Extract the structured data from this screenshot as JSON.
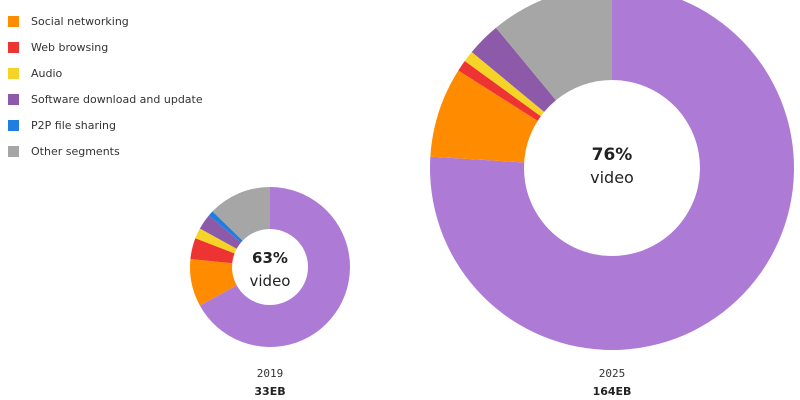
{
  "chart_data": {
    "type": "pie",
    "legend": [
      {
        "label": "Social networking",
        "color": "#ff8c00"
      },
      {
        "label": "Web browsing",
        "color": "#ee3333"
      },
      {
        "label": "Audio",
        "color": "#f5d327"
      },
      {
        "label": "Software download and update",
        "color": "#8c5aa8"
      },
      {
        "label": "P2P file sharing",
        "color": "#1f7fe0"
      },
      {
        "label": "Other segments",
        "color": "#a6a6a6"
      }
    ],
    "video_color": "#ad7ad5",
    "charts": [
      {
        "year": "2019",
        "total": "33EB",
        "center_percent": "63%",
        "center_word": "video",
        "slices": [
          {
            "segment": "Video",
            "value": 63,
            "color": "#ad7ad5"
          },
          {
            "segment": "Social networking",
            "value": 9,
            "color": "#ff8c00"
          },
          {
            "segment": "Web browsing",
            "value": 4,
            "color": "#ee3333"
          },
          {
            "segment": "Audio",
            "value": 2,
            "color": "#f5d327"
          },
          {
            "segment": "Software download and update",
            "value": 3,
            "color": "#8c5aa8"
          },
          {
            "segment": "P2P file sharing",
            "value": 1,
            "color": "#1f7fe0"
          },
          {
            "segment": "Other segments",
            "value": 12,
            "color": "#a6a6a6"
          }
        ]
      },
      {
        "year": "2025",
        "total": "164EB",
        "center_percent": "76%",
        "center_word": "video",
        "slices": [
          {
            "segment": "Video",
            "value": 76,
            "color": "#ad7ad5"
          },
          {
            "segment": "Social networking",
            "value": 8,
            "color": "#ff8c00"
          },
          {
            "segment": "Web browsing",
            "value": 1,
            "color": "#ee3333"
          },
          {
            "segment": "Audio",
            "value": 1,
            "color": "#f5d327"
          },
          {
            "segment": "Software download and update",
            "value": 3,
            "color": "#8c5aa8"
          },
          {
            "segment": "P2P file sharing",
            "value": 0,
            "color": "#1f7fe0"
          },
          {
            "segment": "Other segments",
            "value": 11,
            "color": "#a6a6a6"
          }
        ]
      }
    ]
  }
}
